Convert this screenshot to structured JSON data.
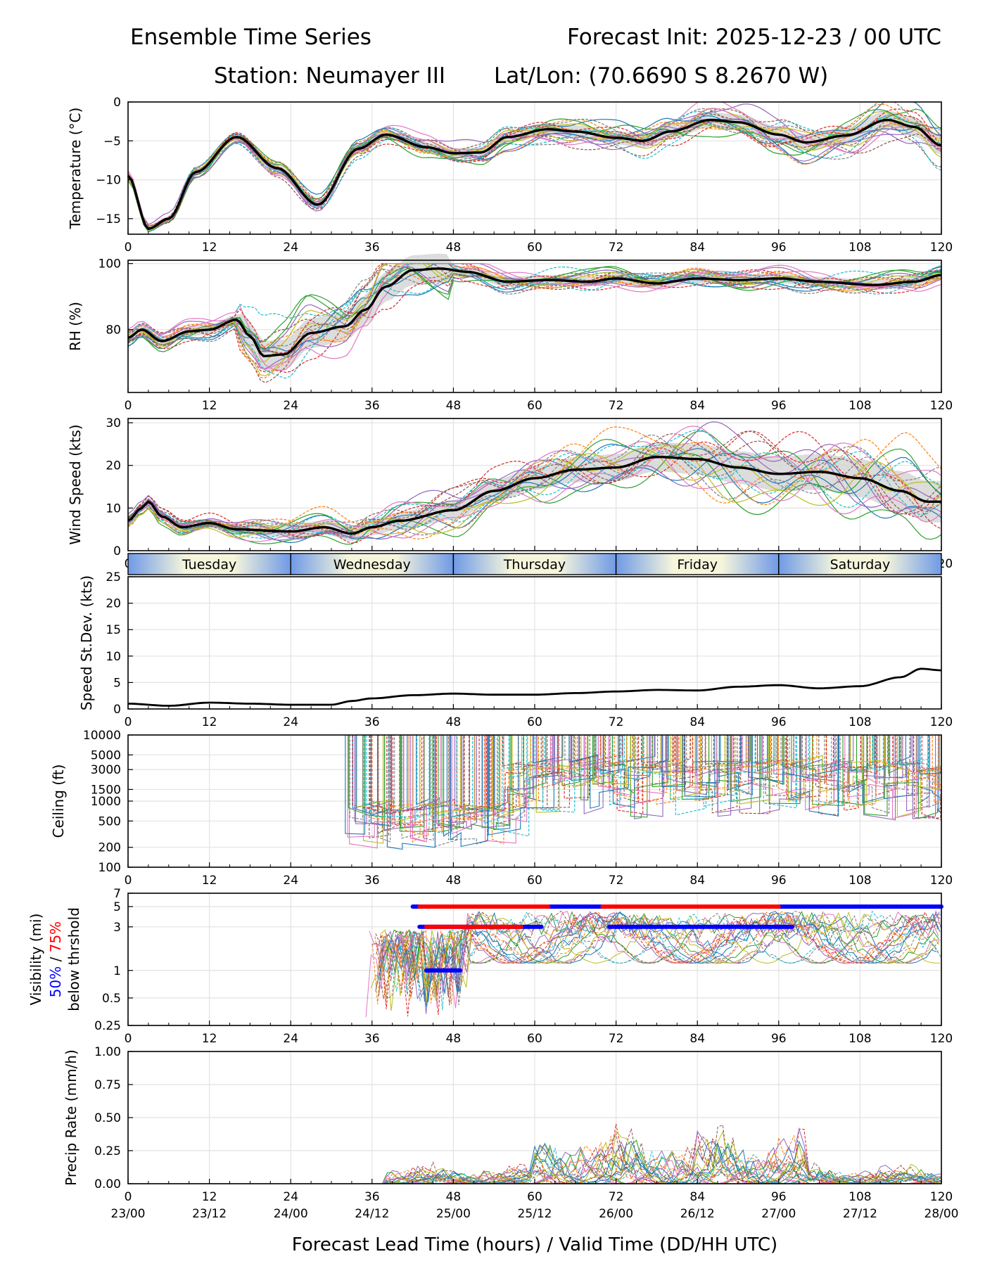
{
  "header": {
    "title_left": "Ensemble Time Series",
    "title_right": "Forecast Init: 2025-12-23 / 00 UTC",
    "station": "Station: Neumayer III",
    "latlon": "Lat/Lon: (70.6690 S 8.2670 W)"
  },
  "day_band": {
    "days": [
      "Tuesday",
      "Wednesday",
      "Thursday",
      "Friday",
      "Saturday"
    ],
    "boundaries_hours": [
      24,
      48,
      72,
      96
    ]
  },
  "xaxis": {
    "range": [
      0,
      120
    ],
    "ticks": [
      "0",
      "12",
      "24",
      "36",
      "48",
      "60",
      "72",
      "84",
      "96",
      "108",
      "120"
    ],
    "valid_times": [
      "23/00",
      "23/12",
      "24/00",
      "24/12",
      "25/00",
      "25/12",
      "26/00",
      "26/12",
      "27/00",
      "27/12",
      "28/00"
    ],
    "label": "Forecast Lead Time (hours) / Valid Time (DD/HH UTC)"
  },
  "colors": {
    "mean": "#000000",
    "spread": "#d3d3d3",
    "blue_marker": "#0000ff",
    "red_marker": "#ff0000",
    "members": [
      "#1f77b4",
      "#ff7f0e",
      "#2ca02c",
      "#d62728",
      "#9467bd",
      "#8c564b",
      "#e377c2",
      "#7f7f7f",
      "#bcbd22",
      "#17becf"
    ]
  },
  "chart_data": [
    {
      "id": "temperature",
      "type": "line",
      "ylabel": "Temperature (°C)",
      "ylim": [
        -17,
        0
      ],
      "yticks": [
        "0",
        "−5",
        "−10",
        "−15"
      ],
      "ytick_values": [
        0,
        -5,
        -10,
        -15
      ],
      "series": [
        {
          "name": "ensemble mean",
          "x": [
            0,
            3,
            6,
            10,
            16,
            22,
            28,
            34,
            38,
            44,
            48,
            52,
            56,
            62,
            66,
            72,
            76,
            80,
            86,
            90,
            96,
            100,
            106,
            112,
            116,
            120
          ],
          "values": [
            -9.5,
            -16.3,
            -15.0,
            -9.0,
            -4.5,
            -8.5,
            -13.2,
            -6.0,
            -4.2,
            -5.8,
            -6.6,
            -6.5,
            -4.5,
            -3.5,
            -3.8,
            -4.6,
            -5.0,
            -3.8,
            -2.3,
            -2.6,
            -4.2,
            -5.2,
            -4.3,
            -2.3,
            -3.2,
            -5.6
          ]
        }
      ]
    },
    {
      "id": "rh",
      "type": "line",
      "ylabel": "RH (%)",
      "ylim": [
        61,
        101
      ],
      "yticks": [
        "100",
        "80"
      ],
      "ytick_values": [
        100,
        80
      ],
      "series": [
        {
          "name": "ensemble mean",
          "x": [
            0,
            2,
            5,
            9,
            12,
            16,
            18,
            20,
            23,
            27,
            32,
            35,
            38,
            42,
            46,
            50,
            56,
            62,
            68,
            72,
            78,
            84,
            90,
            96,
            102,
            110,
            116,
            120
          ],
          "values": [
            77.5,
            80,
            76.5,
            79.5,
            80,
            83,
            78,
            72,
            72.5,
            79,
            81,
            86,
            93,
            98,
            98.5,
            97.5,
            94.5,
            95,
            94.5,
            95.5,
            94,
            95.5,
            95,
            95.5,
            94.5,
            93.5,
            94.5,
            96.5
          ]
        }
      ]
    },
    {
      "id": "wind_speed",
      "type": "line",
      "ylabel": "Wind Speed (kts)",
      "ylim": [
        0,
        31
      ],
      "yticks": [
        "0",
        "10",
        "20",
        "30"
      ],
      "ytick_values": [
        0,
        10,
        20,
        30
      ],
      "series": [
        {
          "name": "ensemble mean",
          "x": [
            0,
            2,
            3,
            5,
            8,
            12,
            16,
            24,
            29,
            33,
            36,
            40,
            48,
            54,
            60,
            66,
            72,
            78,
            84,
            90,
            96,
            102,
            108,
            114,
            118,
            120
          ],
          "values": [
            7,
            10,
            11.5,
            8,
            5.5,
            6.5,
            5,
            4.5,
            5.5,
            4.0,
            5.5,
            7,
            9.5,
            14,
            17,
            19,
            19.5,
            22,
            21.5,
            19.5,
            18,
            18.5,
            17,
            14,
            11.5,
            11.5
          ]
        }
      ]
    },
    {
      "id": "speed_stdev",
      "type": "line",
      "ylabel": "Speed St.Dev. (kts)",
      "ylim": [
        0,
        25
      ],
      "yticks": [
        "0",
        "5",
        "10",
        "15",
        "20",
        "25"
      ],
      "ytick_values": [
        0,
        5,
        10,
        15,
        20,
        25
      ],
      "series": [
        {
          "name": "std dev",
          "x": [
            0,
            6,
            12,
            18,
            24,
            30,
            33,
            36,
            42,
            48,
            54,
            60,
            66,
            72,
            78,
            84,
            90,
            96,
            102,
            108,
            114,
            117,
            120
          ],
          "values": [
            1.0,
            0.6,
            1.2,
            1.0,
            0.8,
            0.8,
            1.5,
            2.0,
            2.6,
            2.9,
            2.7,
            2.7,
            3.0,
            3.3,
            3.6,
            3.5,
            4.2,
            4.5,
            3.9,
            4.3,
            6.0,
            7.6,
            7.3
          ]
        }
      ]
    },
    {
      "id": "ceiling",
      "type": "line",
      "scale": "log",
      "ylabel": "Ceiling (ft)",
      "ylim": [
        100,
        10000
      ],
      "yticks": [
        "100",
        "200",
        "500",
        "1000",
        "1500",
        "3000",
        "5000",
        "10000"
      ],
      "ytick_values": [
        100,
        200,
        500,
        1000,
        1500,
        3000,
        5000,
        10000
      ]
    },
    {
      "id": "visibility",
      "type": "scatter",
      "scale": "log",
      "ylabel_line1": "Visibility (mi)",
      "ylabel_p50": "50%",
      "ylabel_sep": " / ",
      "ylabel_p75": "75%",
      "ylabel_line3": "below thrshold",
      "ylim": [
        0.25,
        7
      ],
      "yticks": [
        "0.25",
        "0.5",
        "1",
        "3",
        "5",
        "7"
      ],
      "ytick_values": [
        0.25,
        0.5,
        1,
        3,
        5,
        7
      ],
      "threshold_markers": [
        {
          "level": 5,
          "pct": 50,
          "x_start": 42,
          "x_end": 120
        },
        {
          "level": 5,
          "pct": 75,
          "x_start": 43,
          "x_end": 62
        },
        {
          "level": 5,
          "pct": 75,
          "x_start": 70,
          "x_end": 96
        },
        {
          "level": 3,
          "pct": 50,
          "x_start": 43,
          "x_end": 61
        },
        {
          "level": 3,
          "pct": 50,
          "x_start": 71,
          "x_end": 98
        },
        {
          "level": 3,
          "pct": 75,
          "x_start": 44,
          "x_end": 58
        },
        {
          "level": 1,
          "pct": 50,
          "x_start": 44,
          "x_end": 49
        }
      ]
    },
    {
      "id": "precip",
      "type": "line",
      "ylabel": "Precip Rate (mm/h)",
      "ylim": [
        0,
        1
      ],
      "yticks": [
        "0.00",
        "0.25",
        "0.50",
        "0.75",
        "1.00"
      ],
      "ytick_values": [
        0,
        0.25,
        0.5,
        0.75,
        1.0
      ]
    }
  ]
}
